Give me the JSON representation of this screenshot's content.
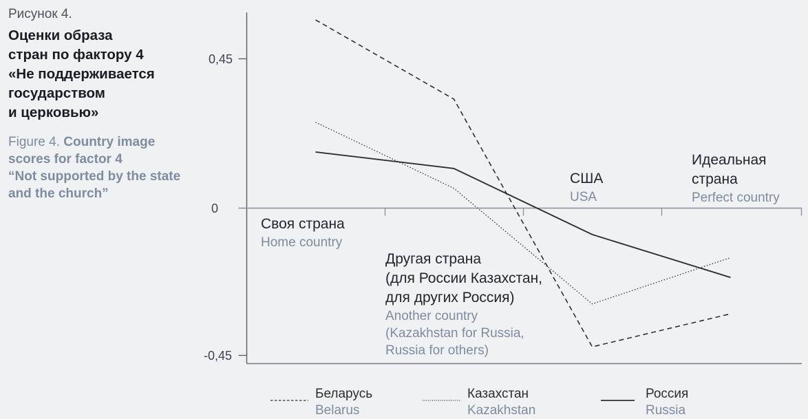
{
  "figure": {
    "caption_ru": "Рисунок 4.",
    "title_ru": "Оценки образа\nстран по фактору 4\n«Не поддерживается\nгосударством\nи церковью»",
    "caption_en": "Figure 4.",
    "title_en": "Country image\nscores for factor 4\n“Not supported by the state\nand the church”"
  },
  "chart_data": {
    "type": "line",
    "categories": [
      {
        "ru": "Своя страна",
        "en": "Home country"
      },
      {
        "ru": "Другая страна\n(для России Казахстан,\nдля других Россия)",
        "en": "Another country\n(Kazakhstan for Russia,\nRussia for others)"
      },
      {
        "ru": "США",
        "en": "USA"
      },
      {
        "ru": "Идеальная\nстрана",
        "en": "Perfect country"
      }
    ],
    "series": [
      {
        "name_ru": "Беларусь",
        "name_en": "Belarus",
        "style": "dashed",
        "values": [
          0.57,
          0.33,
          -0.42,
          -0.32
        ]
      },
      {
        "name_ru": "Казахстан",
        "name_en": "Kazakhstan",
        "style": "dotted",
        "values": [
          0.26,
          0.06,
          -0.29,
          -0.15
        ]
      },
      {
        "name_ru": "Россия",
        "name_en": "Russia",
        "style": "solid",
        "values": [
          0.17,
          0.12,
          -0.08,
          -0.21
        ]
      }
    ],
    "y_ticks": [
      {
        "value": 0.45,
        "label": "0,45"
      },
      {
        "value": 0,
        "label": "0"
      },
      {
        "value": -0.45,
        "label": "-0,45"
      }
    ],
    "ylim": [
      -0.47,
      0.6
    ],
    "grid": false,
    "legend_position": "bottom"
  },
  "colors": {
    "background": "#f0f1f3",
    "text_dark": "#22252b",
    "text_muted": "#7d8c9e",
    "line": "#2e2f33",
    "axis": "#595d64",
    "zero_line": "#8a8d93"
  }
}
